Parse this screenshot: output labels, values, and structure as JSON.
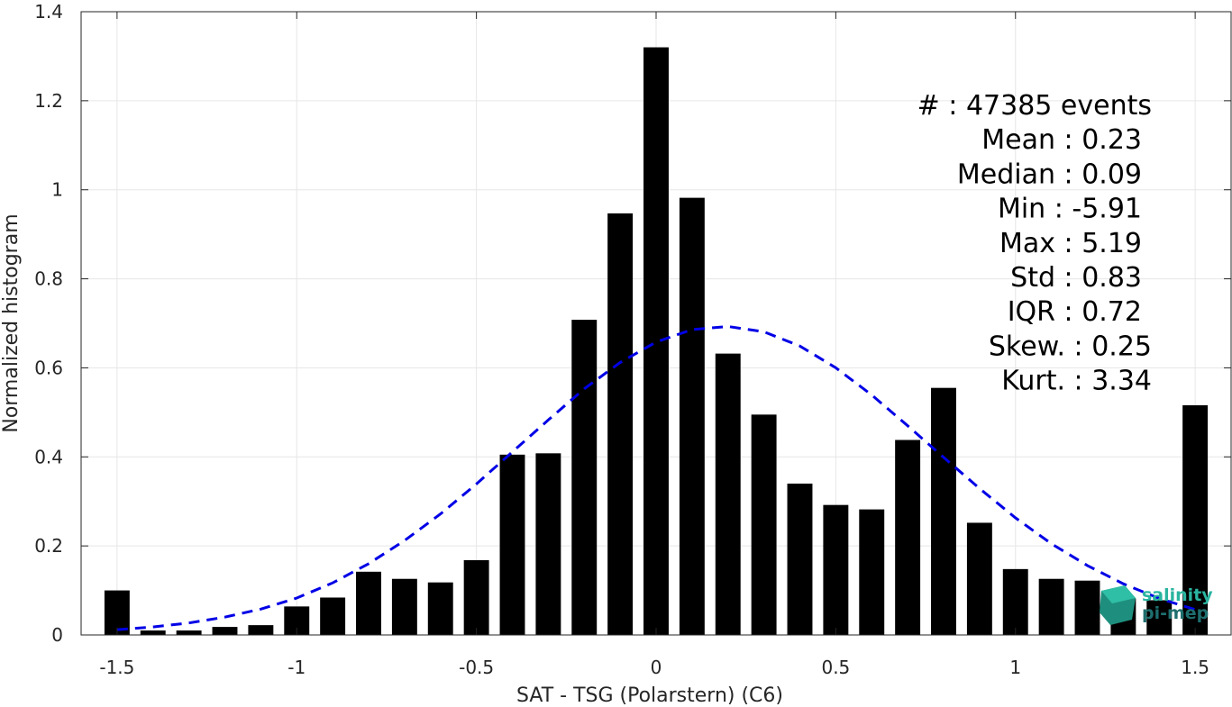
{
  "chart_data": {
    "type": "bar",
    "xlabel": "SAT - TSG (Polarstern) (C6)",
    "ylabel": "Normalized histogram",
    "xlim": [
      -1.6,
      1.6
    ],
    "ylim": [
      0,
      1.4
    ],
    "xticks": [
      -1.5,
      -1,
      -0.5,
      0,
      0.5,
      1,
      1.5
    ],
    "xtick_labels": [
      "-1.5",
      "-1",
      "-0.5",
      "0",
      "0.5",
      "1",
      "1.5"
    ],
    "yticks": [
      0,
      0.2,
      0.4,
      0.6,
      0.8,
      1,
      1.2,
      1.4
    ],
    "ytick_labels": [
      "0",
      "0.2",
      "0.4",
      "0.6",
      "0.8",
      "1",
      "1.2",
      "1.4"
    ],
    "grid": true,
    "bar_width": 0.07,
    "bar_color": "#000000",
    "bars": {
      "x": [
        -1.5,
        -1.4,
        -1.3,
        -1.2,
        -1.1,
        -1.0,
        -0.9,
        -0.8,
        -0.7,
        -0.6,
        -0.5,
        -0.4,
        -0.3,
        -0.2,
        -0.1,
        0.0,
        0.1,
        0.2,
        0.3,
        0.4,
        0.5,
        0.6,
        0.7,
        0.8,
        0.9,
        1.0,
        1.1,
        1.2,
        1.3,
        1.4,
        1.5
      ],
      "values": [
        0.1,
        0.01,
        0.01,
        0.018,
        0.022,
        0.064,
        0.084,
        0.142,
        0.126,
        0.118,
        0.168,
        0.405,
        0.408,
        0.708,
        0.947,
        1.32,
        0.982,
        0.632,
        0.495,
        0.34,
        0.292,
        0.282,
        0.438,
        0.555,
        0.252,
        0.148,
        0.126,
        0.122,
        0.082,
        0.078,
        0.516
      ]
    },
    "fit_curve": {
      "style": "dashed",
      "color": "#0000e6",
      "x": [
        -1.5,
        -1.4,
        -1.3,
        -1.2,
        -1.1,
        -1.0,
        -0.9,
        -0.8,
        -0.7,
        -0.6,
        -0.5,
        -0.4,
        -0.3,
        -0.2,
        -0.1,
        0.0,
        0.1,
        0.2,
        0.3,
        0.4,
        0.5,
        0.6,
        0.7,
        0.8,
        0.9,
        1.0,
        1.1,
        1.2,
        1.3,
        1.4,
        1.5
      ],
      "y": [
        0.012,
        0.018,
        0.027,
        0.04,
        0.058,
        0.083,
        0.117,
        0.16,
        0.212,
        0.272,
        0.339,
        0.411,
        0.483,
        0.553,
        0.612,
        0.658,
        0.686,
        0.693,
        0.681,
        0.649,
        0.6,
        0.539,
        0.47,
        0.399,
        0.329,
        0.263,
        0.205,
        0.156,
        0.115,
        0.082,
        0.057
      ]
    },
    "stats": {
      "lines": [
        "#  : 47385 events",
        "Mean : 0.23",
        "Median : 0.09",
        "Min : -5.91",
        "Max : 5.19",
        "Std : 0.83",
        "IQR : 0.72",
        "Skew. : 0.25",
        "Kurt. : 3.34"
      ]
    }
  },
  "logo": {
    "line1": "salinity",
    "line2": "pi-mep",
    "color1": "#2ab4a0",
    "color2": "#1e6e6e"
  }
}
